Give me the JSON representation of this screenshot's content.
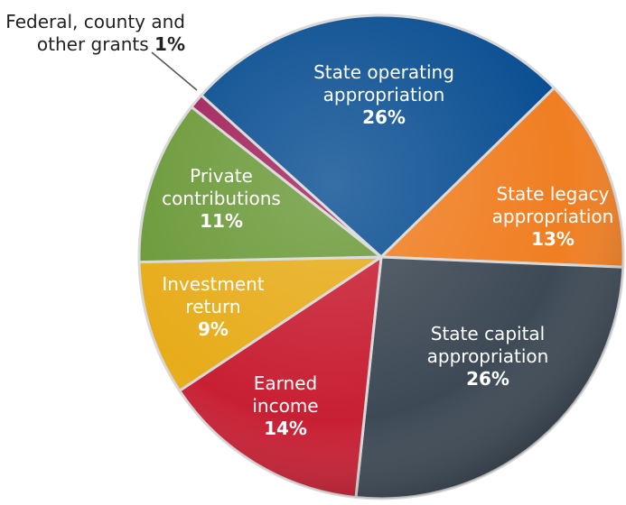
{
  "chart_data": {
    "type": "pie",
    "categories": [
      "State operating appropriation",
      "State legacy appropriation",
      "State capital appropriation",
      "Earned income",
      "Investment return",
      "Private contributions",
      "Federal, county and other grants"
    ],
    "values": [
      26,
      13,
      26,
      14,
      9,
      11,
      1
    ],
    "value_labels": [
      "26%",
      "13%",
      "26%",
      "14%",
      "9%",
      "11%",
      "1%"
    ],
    "colors": [
      "#0b4f92",
      "#f07e22",
      "#3d4955",
      "#c81f33",
      "#e7ac1a",
      "#6c9a3a",
      "#a2245c"
    ]
  }
}
